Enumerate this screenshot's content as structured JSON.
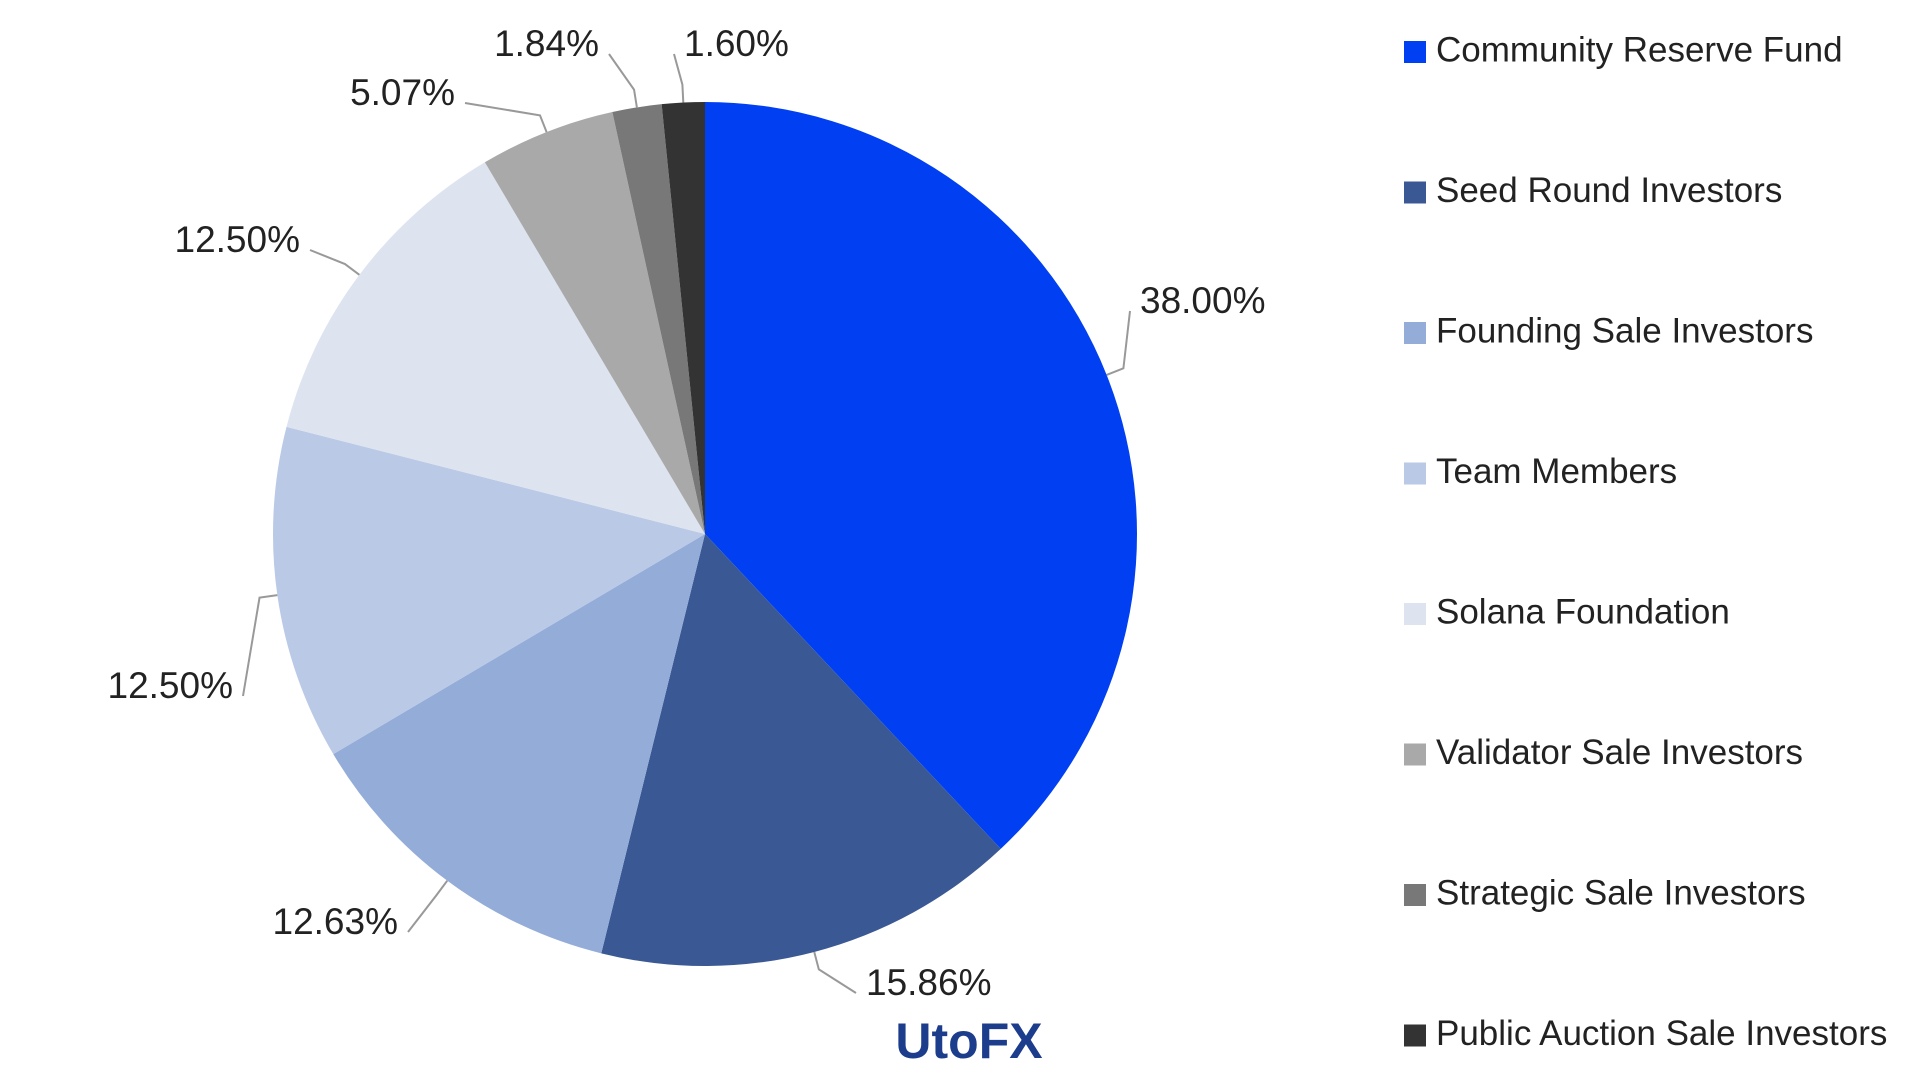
{
  "chart_data": {
    "type": "pie",
    "categories": [
      "Community Reserve Fund",
      "Seed Round Investors",
      "Founding Sale Investors",
      "Team Members",
      "Solana Foundation",
      "Validator Sale Investors",
      "Strategic Sale Investors",
      "Public Auction Sale Investors"
    ],
    "values": [
      38.0,
      15.86,
      12.63,
      12.5,
      12.5,
      5.07,
      1.84,
      1.6
    ],
    "value_labels": [
      "38.00%",
      "15.86%",
      "12.63%",
      "12.50%",
      "12.50%",
      "5.07%",
      "1.84%",
      "1.60%"
    ],
    "colors": [
      "#0040f2",
      "#3a5894",
      "#94acd8",
      "#b9c9e6",
      "#dde3ef",
      "#a9a9a9",
      "#787878",
      "#333333"
    ],
    "legend": "right"
  },
  "watermark": "UtoFX"
}
